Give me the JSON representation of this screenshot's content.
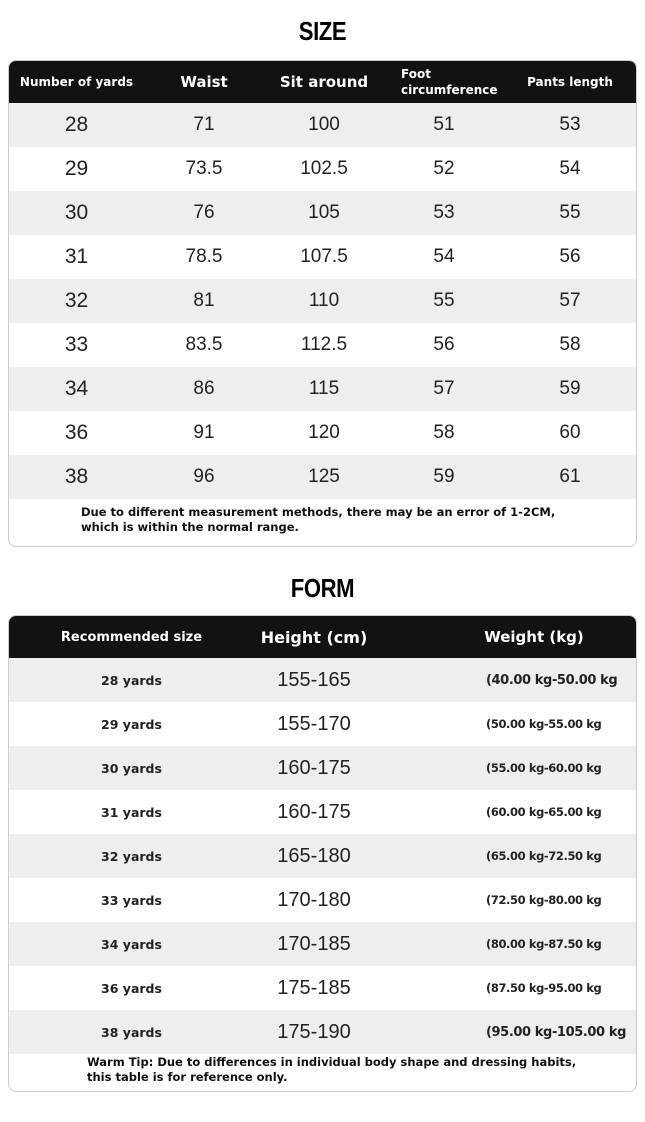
{
  "size_section": {
    "title": "SIZE",
    "table": {
      "headers": [
        "Number of yards",
        "Waist",
        "Sit around",
        "Foot circumference",
        "Pants length"
      ],
      "rows": [
        [
          "28",
          "71",
          "100",
          "51",
          "53"
        ],
        [
          "29",
          "73.5",
          "102.5",
          "52",
          "54"
        ],
        [
          "30",
          "76",
          "105",
          "53",
          "55"
        ],
        [
          "31",
          "78.5",
          "107.5",
          "54",
          "56"
        ],
        [
          "32",
          "81",
          "110",
          "55",
          "57"
        ],
        [
          "33",
          "83.5",
          "112.5",
          "56",
          "58"
        ],
        [
          "34",
          "86",
          "115",
          "57",
          "59"
        ],
        [
          "36",
          "91",
          "120",
          "58",
          "60"
        ],
        [
          "38",
          "96",
          "125",
          "59",
          "61"
        ]
      ]
    },
    "note": "Due to different measurement methods, there may be an error of 1-2CM, which is within the normal range."
  },
  "form_section": {
    "title": "FORM",
    "table": {
      "headers": [
        "Recommended size",
        "Height (cm)",
        "Weight (kg)"
      ],
      "rows": [
        [
          "28 yards",
          "155-165",
          "(40.00 kg-50.00 kg"
        ],
        [
          "29 yards",
          "155-170",
          "(50.00 kg-55.00 kg"
        ],
        [
          "30 yards",
          "160-175",
          "(55.00 kg-60.00 kg"
        ],
        [
          "31 yards",
          "160-175",
          "(60.00 kg-65.00 kg"
        ],
        [
          "32 yards",
          "165-180",
          "(65.00 kg-72.50 kg"
        ],
        [
          "33 yards",
          "170-180",
          "(72.50 kg-80.00 kg"
        ],
        [
          "34 yards",
          "170-185",
          "(80.00 kg-87.50 kg"
        ],
        [
          "36 yards",
          "175-185",
          "(87.50 kg-95.00 kg"
        ],
        [
          "38 yards",
          "175-190",
          "(95.00 kg-105.00 kg"
        ]
      ]
    },
    "note": "Warm Tip: Due to differences in individual body shape and dressing habits, this table is for reference only."
  }
}
